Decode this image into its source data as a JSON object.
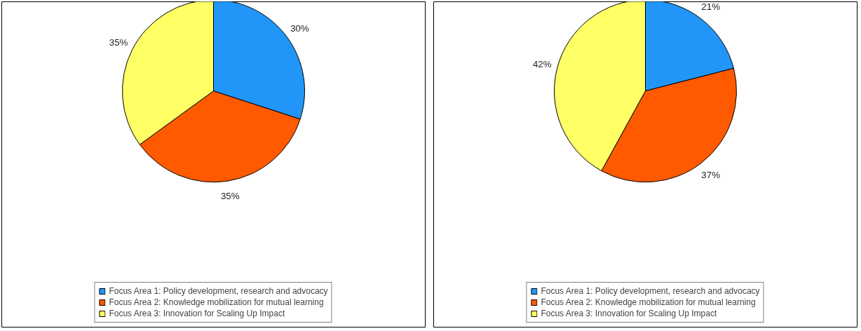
{
  "chart_data": [
    {
      "type": "pie",
      "categories": [
        "Focus Area 1: Policy development, research and advocacy",
        "Focus Area 2: Knowledge mobilization for mutual learning",
        "Focus Area 3: Innovation for Scaling Up Impact"
      ],
      "values": [
        30,
        35,
        35
      ],
      "value_labels": [
        "30%",
        "35%",
        "35%"
      ],
      "colors": [
        "#2196f8",
        "#ff5a00",
        "#ffff66"
      ],
      "legend": "bottom"
    },
    {
      "type": "pie",
      "categories": [
        "Focus Area 1: Policy development, research and advocacy",
        "Focus Area 2: Knowledge mobilization for mutual learning",
        "Focus Area 3: Innovation for Scaling Up Impact"
      ],
      "values": [
        21,
        37,
        42
      ],
      "value_labels": [
        "21%",
        "37%",
        "42%"
      ],
      "colors": [
        "#2196f8",
        "#ff5a00",
        "#ffff66"
      ],
      "legend": "bottom"
    }
  ]
}
